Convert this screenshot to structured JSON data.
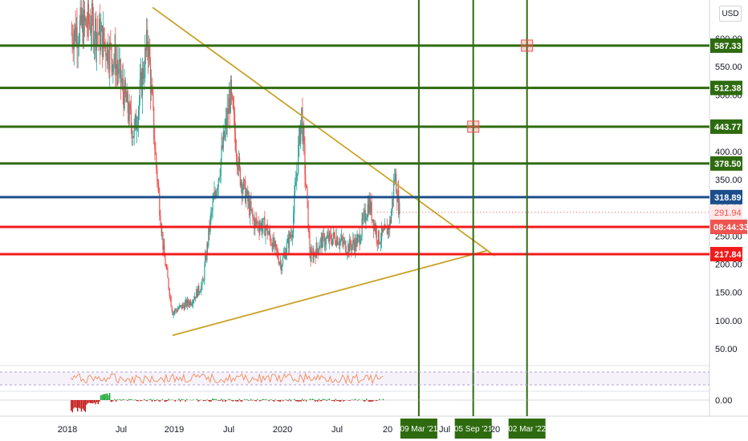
{
  "currency": "USD",
  "colors": {
    "up": "#26a69a",
    "down": "#ef5350",
    "resistance": "#2e6b0f",
    "support": "#f21b1b",
    "mid": "#1c4e8c",
    "triangle": "#c9a227",
    "rsi": "#f48b5a",
    "macd_up": "#1fa83a",
    "macd_down": "#c31a1a"
  },
  "chart_data": {
    "type": "candlestick",
    "y_ticks": [
      "50.00",
      "100.00",
      "150.00",
      "200.00",
      "250.00",
      "300.00",
      "350.00",
      "400.00",
      "450.00",
      "500.00",
      "550.00",
      "600.00"
    ],
    "x_ticks": [
      "2018",
      "Jul",
      "2019",
      "Jul",
      "2020",
      "Jul",
      "20",
      "Jul",
      "20"
    ],
    "price_lines": [
      {
        "value": 587.33,
        "label": "587.33",
        "kind": "resistance"
      },
      {
        "value": 512.38,
        "label": "512.38",
        "kind": "resistance"
      },
      {
        "value": 443.77,
        "label": "443.77",
        "kind": "resistance"
      },
      {
        "value": 378.5,
        "label": "378.50",
        "kind": "resistance"
      },
      {
        "value": 318.89,
        "label": "318.89",
        "kind": "mid"
      },
      {
        "value": 266.09,
        "label": "266.09",
        "kind": "support"
      },
      {
        "value": 217.84,
        "label": "217.84",
        "kind": "support"
      }
    ],
    "current_price": {
      "value": 291.94,
      "label": "291.94",
      "countdown": "08:44:33"
    },
    "vertical_lines": [
      {
        "date": "2021-03-09",
        "label": "09 Mar '21"
      },
      {
        "date": "2021-09-05",
        "label": "05 Sep '21"
      },
      {
        "date": "2022-03-02",
        "label": "02 Mar '22"
      }
    ],
    "markers": [
      {
        "date": "2022-03-02",
        "value": 587.33
      },
      {
        "date": "2021-09-05",
        "value": 443.77
      }
    ],
    "triangle_upper": [
      {
        "date": "2018-10-10",
        "value": 655
      },
      {
        "date": "2021-11-15",
        "value": 215
      }
    ],
    "triangle_lower": [
      {
        "date": "2018-12-15",
        "value": 74
      },
      {
        "date": "2021-10-20",
        "value": 224
      }
    ],
    "anchors": [
      {
        "date": "2018-01-15",
        "value": 610
      },
      {
        "date": "2018-03-20",
        "value": 630
      },
      {
        "date": "2018-06-10",
        "value": 560
      },
      {
        "date": "2018-08-10",
        "value": 430
      },
      {
        "date": "2018-09-25",
        "value": 600
      },
      {
        "date": "2018-10-20",
        "value": 390
      },
      {
        "date": "2018-11-15",
        "value": 225
      },
      {
        "date": "2018-12-15",
        "value": 115
      },
      {
        "date": "2019-02-15",
        "value": 135
      },
      {
        "date": "2019-03-25",
        "value": 165
      },
      {
        "date": "2019-04-20",
        "value": 280
      },
      {
        "date": "2019-05-20",
        "value": 370
      },
      {
        "date": "2019-06-25",
        "value": 500
      },
      {
        "date": "2019-07-25",
        "value": 360
      },
      {
        "date": "2019-09-10",
        "value": 275
      },
      {
        "date": "2019-10-20",
        "value": 265
      },
      {
        "date": "2019-12-10",
        "value": 200
      },
      {
        "date": "2020-01-15",
        "value": 260
      },
      {
        "date": "2020-02-15",
        "value": 470
      },
      {
        "date": "2020-03-15",
        "value": 210
      },
      {
        "date": "2020-04-20",
        "value": 240
      },
      {
        "date": "2020-06-10",
        "value": 248
      },
      {
        "date": "2020-07-15",
        "value": 230
      },
      {
        "date": "2020-08-20",
        "value": 240
      },
      {
        "date": "2020-09-25",
        "value": 310
      },
      {
        "date": "2020-10-25",
        "value": 245
      },
      {
        "date": "2020-11-20",
        "value": 255
      },
      {
        "date": "2020-12-05",
        "value": 275
      },
      {
        "date": "2020-12-20",
        "value": 360
      },
      {
        "date": "2021-01-05",
        "value": 292
      }
    ]
  }
}
